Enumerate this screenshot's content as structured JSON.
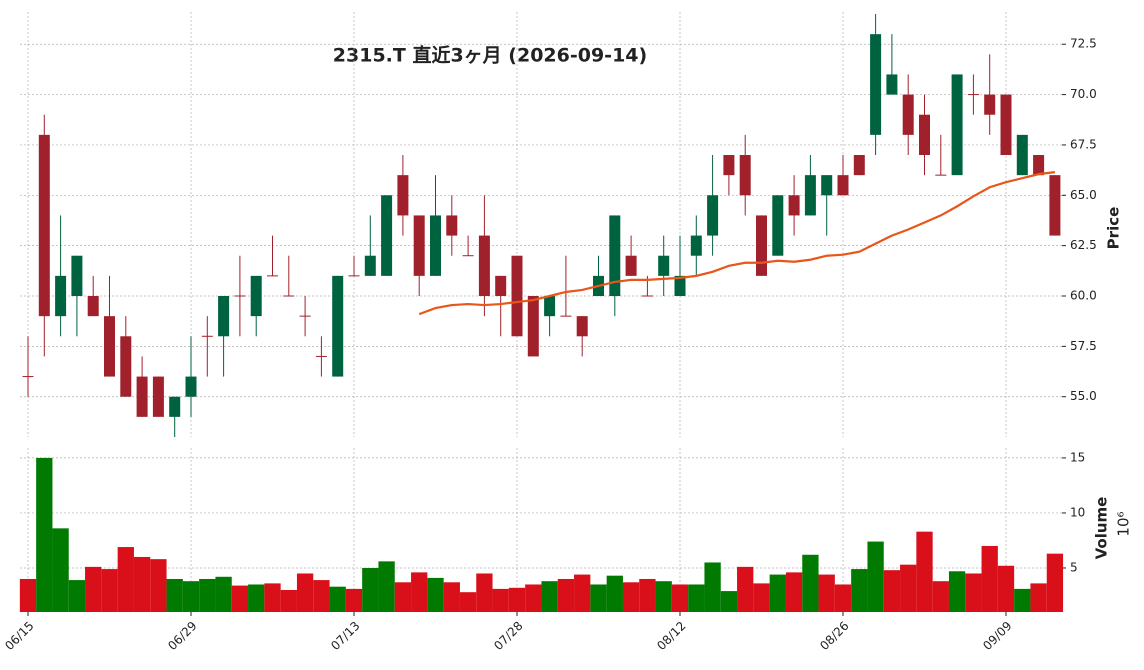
{
  "chart_data": {
    "type": "candlestick",
    "title": "2315.T  直近3ヶ月  (2026-09-14)",
    "ylabel": "Price",
    "categories": [
      "06/15",
      null,
      null,
      null,
      null,
      null,
      null,
      null,
      null,
      null,
      "06/29",
      null,
      null,
      null,
      null,
      null,
      null,
      null,
      null,
      null,
      "07/13",
      null,
      null,
      null,
      null,
      null,
      null,
      null,
      null,
      null,
      "07/28",
      null,
      null,
      null,
      null,
      null,
      null,
      null,
      null,
      null,
      "08/12",
      null,
      null,
      null,
      null,
      null,
      null,
      null,
      null,
      null,
      "08/26",
      null,
      null,
      null,
      null,
      null,
      null,
      null,
      null,
      null,
      "09/09",
      null,
      null,
      null
    ],
    "open": [
      56,
      68,
      59,
      60,
      60,
      59,
      58,
      56,
      56,
      54,
      55,
      58,
      58,
      60,
      59,
      61,
      60,
      59,
      57,
      56,
      61,
      61,
      61,
      66,
      64,
      61,
      64,
      62,
      63,
      61,
      62,
      60,
      59,
      59,
      59,
      60,
      60,
      62,
      60,
      61,
      60,
      62,
      63,
      67,
      67,
      64,
      62,
      65,
      64,
      65,
      66,
      67,
      68,
      70,
      70,
      69,
      66,
      66,
      70,
      70,
      70,
      66,
      67,
      66
    ],
    "high": [
      58,
      69,
      64,
      62,
      61,
      61,
      59,
      57,
      56,
      55,
      58,
      59,
      60,
      62,
      61,
      63,
      62,
      60,
      58,
      61,
      62,
      64,
      65,
      67,
      64,
      66,
      65,
      63,
      65,
      61,
      62,
      60,
      60,
      62,
      59,
      62,
      64,
      63,
      61,
      63,
      63,
      64,
      67,
      67,
      68,
      64,
      65,
      66,
      67,
      66,
      67,
      67,
      74,
      73,
      71,
      70,
      68,
      71,
      71,
      72,
      70,
      68,
      67,
      66
    ],
    "low": [
      55,
      57,
      58,
      58,
      59,
      56,
      55,
      54,
      54,
      53,
      54,
      56,
      56,
      58,
      58,
      61,
      60,
      58,
      56,
      56,
      61,
      61,
      61,
      63,
      60,
      61,
      62,
      62,
      59,
      58,
      58,
      57,
      58,
      59,
      57,
      60,
      59,
      61,
      60,
      60,
      60,
      61,
      62,
      65,
      64,
      61,
      62,
      63,
      64,
      63,
      65,
      66,
      67,
      70,
      67,
      66,
      66,
      66,
      69,
      68,
      67,
      66,
      66,
      63
    ],
    "close": [
      56,
      59,
      61,
      62,
      59,
      56,
      55,
      54,
      54,
      55,
      56,
      58,
      60,
      60,
      61,
      61,
      60,
      59,
      57,
      61,
      61,
      62,
      65,
      64,
      61,
      64,
      63,
      62,
      60,
      60,
      58,
      57,
      60,
      59,
      58,
      61,
      64,
      61,
      60,
      62,
      61,
      63,
      65,
      66,
      65,
      61,
      65,
      64,
      66,
      66,
      65,
      66,
      73,
      71,
      68,
      67,
      66,
      71,
      70,
      69,
      67,
      68,
      66,
      63
    ],
    "ylim": [
      53.0,
      74.1
    ],
    "yticks": [
      {
        "value": 55,
        "label": "55.0"
      },
      57.5,
      {
        "value": 60,
        "label": "60.0"
      },
      62.5,
      {
        "value": 65,
        "label": "65.0"
      },
      67.5,
      {
        "value": 70,
        "label": "70.0"
      },
      72.5
    ],
    "up_color": "#006340",
    "down_color": "#a0212b",
    "grid": true,
    "moving_average": {
      "color": "#e8561a",
      "values": [
        null,
        null,
        null,
        null,
        null,
        null,
        null,
        null,
        null,
        null,
        null,
        null,
        null,
        null,
        null,
        null,
        null,
        null,
        null,
        null,
        null,
        null,
        null,
        null,
        59.1,
        59.4,
        59.55,
        59.6,
        59.55,
        59.6,
        59.7,
        59.8,
        60.0,
        60.2,
        60.3,
        60.5,
        60.7,
        60.8,
        60.8,
        60.85,
        60.9,
        61.0,
        61.2,
        61.5,
        61.65,
        61.65,
        61.75,
        61.7,
        61.8,
        62.0,
        62.05,
        62.2,
        62.6,
        63.0,
        63.3,
        63.65,
        64.0,
        64.45,
        64.95,
        65.4,
        65.65,
        65.85,
        66.05,
        66.15
      ]
    },
    "volume": {
      "ylabel": "Volume",
      "offset_label": "10⁶",
      "values": [
        4.0,
        15.0,
        8.6,
        3.9,
        5.1,
        4.9,
        6.9,
        6.0,
        5.8,
        4.0,
        3.8,
        4.0,
        4.2,
        3.4,
        3.5,
        3.6,
        3.0,
        4.5,
        3.9,
        3.3,
        3.1,
        5.0,
        5.6,
        3.7,
        4.6,
        4.1,
        3.7,
        2.8,
        4.5,
        3.1,
        3.2,
        3.5,
        3.8,
        4.0,
        4.4,
        3.5,
        4.3,
        3.7,
        4.0,
        3.8,
        3.5,
        3.5,
        5.5,
        2.9,
        5.1,
        3.6,
        4.4,
        4.6,
        6.2,
        4.4,
        3.5,
        4.9,
        7.4,
        4.8,
        5.3,
        8.3,
        3.8,
        4.7,
        4.5,
        7.0,
        5.2,
        3.1,
        3.6,
        6.3
      ],
      "ylim": [
        1.0,
        15.9
      ],
      "yticks": [
        5,
        10,
        15
      ],
      "up_color": "#007a00",
      "down_color": "#d90f1a"
    }
  }
}
